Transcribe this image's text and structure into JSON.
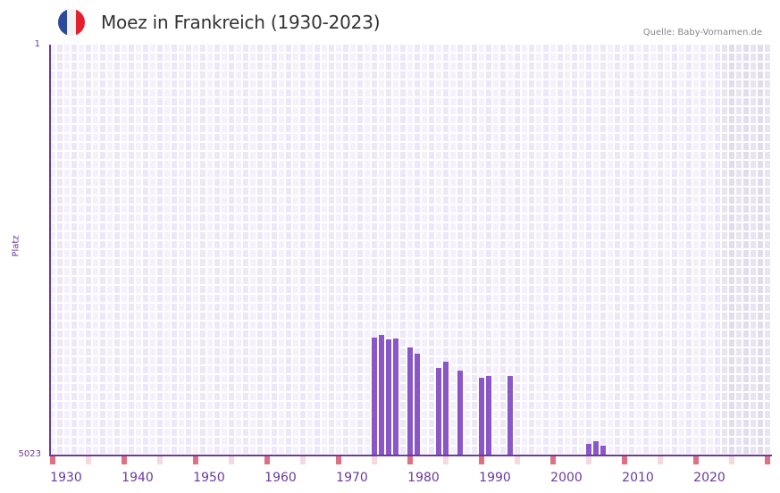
{
  "header": {
    "title": "Moez in Frankreich (1930-2023)",
    "source": "Quelle: Baby-Vornamen.de",
    "flag_icon": "france-flag-icon",
    "flag_colors": [
      "#2c4a9c",
      "#f2f2f2",
      "#e4202e"
    ]
  },
  "colors": {
    "bar": "#8b56c8",
    "axis": "#6a3a9c",
    "grid_a": "#ede8f8",
    "grid_b": "#f4f1fc",
    "future_a": "#e2ddee",
    "future_b": "#e8e4f0",
    "marker_major": "#e07080",
    "marker_minor": "#f5d8e0"
  },
  "chart_data": {
    "type": "bar",
    "title": "Moez in Frankreich (1930-2023)",
    "xlabel": "",
    "ylabel": "Platz",
    "y_inverted": true,
    "ylim": [
      1,
      5023
    ],
    "yticks": [
      "1",
      "5023"
    ],
    "xlim": [
      1928,
      2028
    ],
    "xticks": [
      "1930",
      "1940",
      "1950",
      "1960",
      "1970",
      "1980",
      "1990",
      "2000",
      "2010",
      "2020"
    ],
    "grid": true,
    "shaded_future_from": 2022,
    "categories": [
      1973,
      1974,
      1975,
      1976,
      1978,
      1979,
      1982,
      1983,
      1985,
      1988,
      1989,
      1992,
      2003,
      2004,
      2005
    ],
    "values": [
      3582,
      3549,
      3604,
      3593,
      3702,
      3778,
      3953,
      3876,
      3986,
      4073,
      4051,
      4051,
      4881,
      4848,
      4903
    ],
    "value_meaning": "rank (Platz), lower is more popular"
  }
}
